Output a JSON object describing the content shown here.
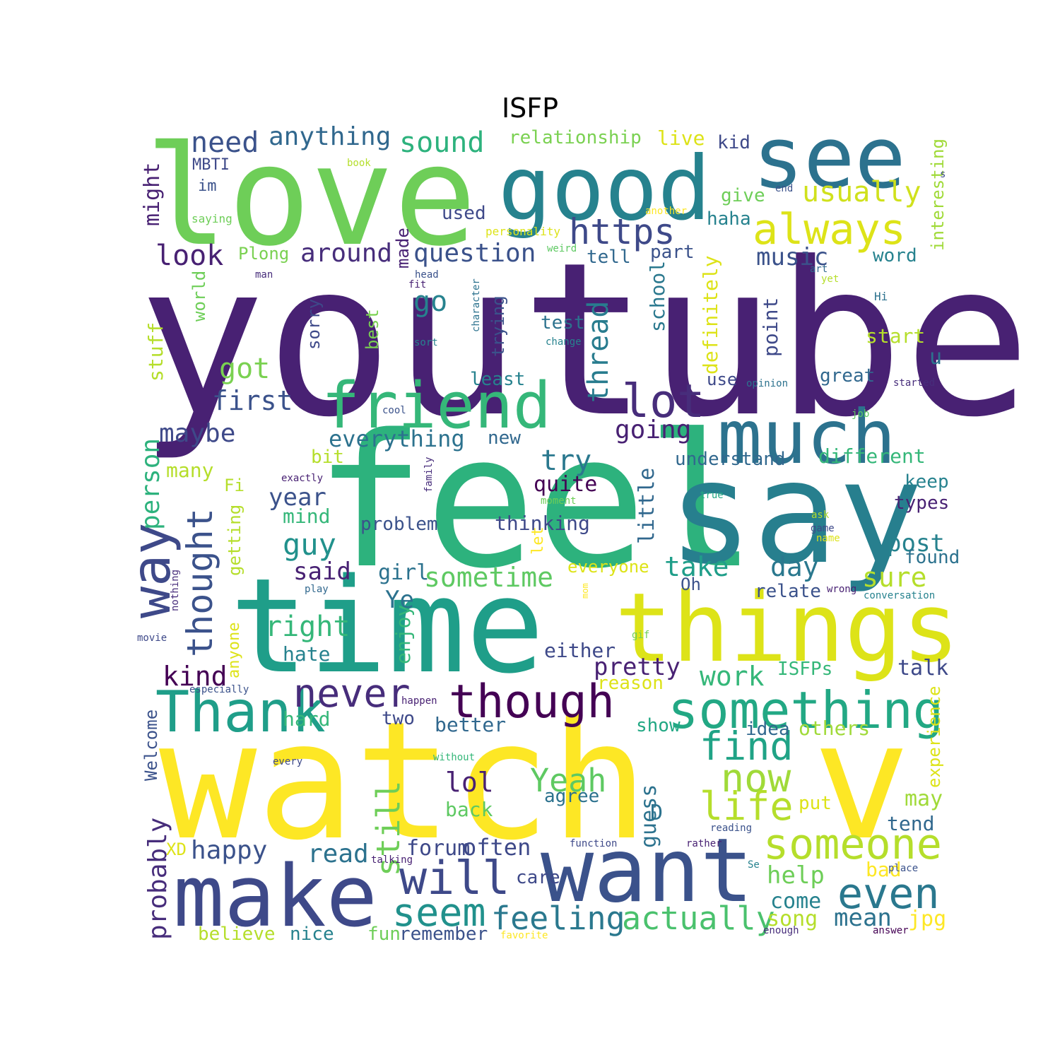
{
  "title": "ISFP",
  "palette": {
    "purple_dark": "#482173",
    "indigo": "#3e4989",
    "blue": "#31688e",
    "teal": "#26828e",
    "green_teal": "#1f9e89",
    "green": "#35b779",
    "light_green": "#6ece58",
    "yellow_green": "#b5de2b",
    "yellow": "#fde725",
    "deep_purple": "#440154"
  },
  "words": [
    {
      "text": "youtube",
      "color": "#482173"
    },
    {
      "text": "feel",
      "color": "#2db27d"
    },
    {
      "text": "watch",
      "color": "#fde725"
    },
    {
      "text": "v",
      "color": "#fde725"
    },
    {
      "text": "love",
      "color": "#6ece58"
    },
    {
      "text": "time",
      "color": "#1f9e89"
    },
    {
      "text": "say",
      "color": "#277f8e"
    },
    {
      "text": "good",
      "color": "#26828e"
    },
    {
      "text": "see",
      "color": "#2c728e"
    },
    {
      "text": "things",
      "color": "#dde318"
    },
    {
      "text": "make",
      "color": "#3e4989"
    },
    {
      "text": "want",
      "color": "#3b528b"
    },
    {
      "text": "much",
      "color": "#2c728e"
    },
    {
      "text": "friend",
      "color": "#35b779"
    },
    {
      "text": "something",
      "color": "#22a884"
    },
    {
      "text": "Thank",
      "color": "#1f9e89"
    },
    {
      "text": "though",
      "color": "#440154"
    },
    {
      "text": "never",
      "color": "#472d7b"
    },
    {
      "text": "someone",
      "color": "#b5de2b"
    },
    {
      "text": "will",
      "color": "#3e4989"
    },
    {
      "text": "even",
      "color": "#2a788e"
    },
    {
      "text": "find",
      "color": "#20a386"
    },
    {
      "text": "now",
      "color": "#a0da39"
    },
    {
      "text": "life",
      "color": "#b5de2b"
    },
    {
      "text": "seem",
      "color": "#21918c"
    },
    {
      "text": "feeling",
      "color": "#2a788e"
    },
    {
      "text": "actually",
      "color": "#4ac16d"
    },
    {
      "text": "always",
      "color": "#dde318"
    },
    {
      "text": "https",
      "color": "#3e4989"
    },
    {
      "text": "lot",
      "color": "#472d7b"
    },
    {
      "text": "way",
      "color": "#3e4989"
    },
    {
      "text": "thought",
      "color": "#3b528b"
    },
    {
      "text": "usually",
      "color": "#d0e11c"
    },
    {
      "text": "Yeah",
      "color": "#5ec962"
    },
    {
      "text": "still",
      "color": "#6ece58"
    },
    {
      "text": "need",
      "color": "#3b528b"
    },
    {
      "text": "anything",
      "color": "#31688e"
    },
    {
      "text": "sound",
      "color": "#2db27d"
    },
    {
      "text": "look",
      "color": "#482173"
    },
    {
      "text": "around",
      "color": "#472d7b"
    },
    {
      "text": "question",
      "color": "#3b528b"
    },
    {
      "text": "go",
      "color": "#26828e"
    },
    {
      "text": "got",
      "color": "#7ad151"
    },
    {
      "text": "first",
      "color": "#3b528b"
    },
    {
      "text": "thread",
      "color": "#287c8e"
    },
    {
      "text": "going",
      "color": "#482173"
    },
    {
      "text": "maybe",
      "color": "#3e4989"
    },
    {
      "text": "everything",
      "color": "#2c728e"
    },
    {
      "text": "try",
      "color": "#2a788e"
    },
    {
      "text": "person",
      "color": "#2db27d"
    },
    {
      "text": "sometime",
      "color": "#5ec962"
    },
    {
      "text": "take",
      "color": "#1f9e89"
    },
    {
      "text": "day",
      "color": "#2a788e"
    },
    {
      "text": "sure",
      "color": "#b5de2b"
    },
    {
      "text": "post",
      "color": "#26828e"
    },
    {
      "text": "guy",
      "color": "#21918c"
    },
    {
      "text": "right",
      "color": "#35b779"
    },
    {
      "text": "kind",
      "color": "#440154"
    },
    {
      "text": "pretty",
      "color": "#482173"
    },
    {
      "text": "work",
      "color": "#35b779"
    },
    {
      "text": "lol",
      "color": "#482173"
    },
    {
      "text": "probably",
      "color": "#472d7b"
    },
    {
      "text": "happy",
      "color": "#3b528b"
    },
    {
      "text": "read",
      "color": "#2c728e"
    },
    {
      "text": "often",
      "color": "#3e4989"
    },
    {
      "text": "forum",
      "color": "#3e4989"
    },
    {
      "text": "help",
      "color": "#6ece58"
    },
    {
      "text": "come",
      "color": "#26828e"
    },
    {
      "text": "mean",
      "color": "#2c728e"
    },
    {
      "text": "song",
      "color": "#b5de2b"
    },
    {
      "text": "jpg",
      "color": "#fde725"
    },
    {
      "text": "music",
      "color": "#3b528b"
    },
    {
      "text": "definitely",
      "color": "#dde318"
    },
    {
      "text": "school",
      "color": "#2a788e"
    },
    {
      "text": "point",
      "color": "#3e4989"
    },
    {
      "text": "little",
      "color": "#31688e"
    },
    {
      "text": "guess",
      "color": "#2c728e"
    },
    {
      "text": "might",
      "color": "#482173"
    },
    {
      "text": "stuff",
      "color": "#b5de2b"
    },
    {
      "text": "many",
      "color": "#b5de2b"
    },
    {
      "text": "year",
      "color": "#3b528b"
    },
    {
      "text": "mind",
      "color": "#35b779"
    },
    {
      "text": "quite",
      "color": "#440154"
    },
    {
      "text": "thinking",
      "color": "#3e4989"
    },
    {
      "text": "problem",
      "color": "#3b528b"
    },
    {
      "text": "said",
      "color": "#482173"
    },
    {
      "text": "girl",
      "color": "#2c728e"
    },
    {
      "text": "Ye",
      "color": "#2c728e"
    },
    {
      "text": "enjoy",
      "color": "#35b779"
    },
    {
      "text": "hate",
      "color": "#26828e"
    },
    {
      "text": "hard",
      "color": "#35b779"
    },
    {
      "text": "two",
      "color": "#3e4989"
    },
    {
      "text": "better",
      "color": "#31688e"
    },
    {
      "text": "either",
      "color": "#3e4989"
    },
    {
      "text": "reason",
      "color": "#dde318"
    },
    {
      "text": "talk",
      "color": "#3e4989"
    },
    {
      "text": "ISFPs",
      "color": "#35b779"
    },
    {
      "text": "experience",
      "color": "#dde318"
    },
    {
      "text": "others",
      "color": "#a0da39"
    },
    {
      "text": "idea",
      "color": "#31688e"
    },
    {
      "text": "show",
      "color": "#22a884"
    },
    {
      "text": "may",
      "color": "#a0da39"
    },
    {
      "text": "tend",
      "color": "#31688e"
    },
    {
      "text": "put",
      "color": "#dde318"
    },
    {
      "text": "D",
      "color": "#2c728e"
    },
    {
      "text": "bad",
      "color": "#fde725"
    },
    {
      "text": "back",
      "color": "#5ec962"
    },
    {
      "text": "agree",
      "color": "#2c728e"
    },
    {
      "text": "care",
      "color": "#3e4989"
    },
    {
      "text": "fun",
      "color": "#6ece58"
    },
    {
      "text": "remember",
      "color": "#3b528b"
    },
    {
      "text": "nice",
      "color": "#26828e"
    },
    {
      "text": "believe",
      "color": "#b5de2b"
    },
    {
      "text": "XD",
      "color": "#dde318"
    },
    {
      "text": "Welcome",
      "color": "#3b528b"
    },
    {
      "text": "anyone",
      "color": "#dde318"
    },
    {
      "text": "getting",
      "color": "#b5de2b"
    },
    {
      "text": "world",
      "color": "#6ece58"
    },
    {
      "text": "Fi",
      "color": "#b5de2b"
    },
    {
      "text": "sorry",
      "color": "#3e4989"
    },
    {
      "text": "best",
      "color": "#7ad151"
    },
    {
      "text": "trying",
      "color": "#3b528b"
    },
    {
      "text": "test",
      "color": "#2c728e"
    },
    {
      "text": "least",
      "color": "#26828e"
    },
    {
      "text": "new",
      "color": "#31688e"
    },
    {
      "text": "bit",
      "color": "#b5de2b"
    },
    {
      "text": "made",
      "color": "#482173"
    },
    {
      "text": "used",
      "color": "#3e4989"
    },
    {
      "text": "part",
      "color": "#3b528b"
    },
    {
      "text": "tell",
      "color": "#31688e"
    },
    {
      "text": "haha",
      "color": "#26828e"
    },
    {
      "text": "give",
      "color": "#6ece58"
    },
    {
      "text": "kid",
      "color": "#3e4989"
    },
    {
      "text": "live",
      "color": "#dde318"
    },
    {
      "text": "relationship",
      "color": "#7ad151"
    },
    {
      "text": "interesting",
      "color": "#a0da39"
    },
    {
      "text": "word",
      "color": "#26828e"
    },
    {
      "text": "start",
      "color": "#b5de2b"
    },
    {
      "text": "u",
      "color": "#2c728e"
    },
    {
      "text": "great",
      "color": "#31688e"
    },
    {
      "text": "use",
      "color": "#3e4989"
    },
    {
      "text": "different",
      "color": "#35b779"
    },
    {
      "text": "understand",
      "color": "#31688e"
    },
    {
      "text": "keep",
      "color": "#26828e"
    },
    {
      "text": "types",
      "color": "#482173"
    },
    {
      "text": "found",
      "color": "#2c728e"
    },
    {
      "text": "relate",
      "color": "#3b528b"
    },
    {
      "text": "everyone",
      "color": "#dde318"
    },
    {
      "text": "Oh",
      "color": "#3b528b"
    },
    {
      "text": "let",
      "color": "#fde725"
    },
    {
      "text": "MBTI",
      "color": "#3e4989"
    },
    {
      "text": "im",
      "color": "#3b528b"
    },
    {
      "text": "Plong",
      "color": "#7ad151"
    },
    {
      "text": "book",
      "color": "#b5de2b"
    },
    {
      "text": "saying",
      "color": "#6ece58"
    },
    {
      "text": "personality",
      "color": "#dde318"
    },
    {
      "text": "another",
      "color": "#fde725"
    },
    {
      "text": "weird",
      "color": "#5ec962"
    },
    {
      "text": "man",
      "color": "#472d7b"
    },
    {
      "text": "head",
      "color": "#3b528b"
    },
    {
      "text": "fit",
      "color": "#482173"
    },
    {
      "text": "character",
      "color": "#2c728e"
    },
    {
      "text": "change",
      "color": "#26828e"
    },
    {
      "text": "sort",
      "color": "#26828e"
    },
    {
      "text": "art",
      "color": "#31688e"
    },
    {
      "text": "yet",
      "color": "#b5de2b"
    },
    {
      "text": "Hi",
      "color": "#2c728e"
    },
    {
      "text": "end",
      "color": "#3b528b"
    },
    {
      "text": "s",
      "color": "#3e4989"
    },
    {
      "text": "opinion",
      "color": "#2c728e"
    },
    {
      "text": "started",
      "color": "#472d7b"
    },
    {
      "text": "cool",
      "color": "#3b528b"
    },
    {
      "text": "job",
      "color": "#5ec962"
    },
    {
      "text": "exactly",
      "color": "#482173"
    },
    {
      "text": "family",
      "color": "#472d7b"
    },
    {
      "text": "true",
      "color": "#22a884"
    },
    {
      "text": "moment",
      "color": "#6ece58"
    },
    {
      "text": "ask",
      "color": "#b5de2b"
    },
    {
      "text": "game",
      "color": "#3e4989"
    },
    {
      "text": "name",
      "color": "#dde318"
    },
    {
      "text": "wrong",
      "color": "#482173"
    },
    {
      "text": "conversation",
      "color": "#26828e"
    },
    {
      "text": "play",
      "color": "#31688e"
    },
    {
      "text": "nothing",
      "color": "#472d7b"
    },
    {
      "text": "mom",
      "color": "#fde725"
    },
    {
      "text": "movie",
      "color": "#3e4989"
    },
    {
      "text": "gif",
      "color": "#6ece58"
    },
    {
      "text": "especially",
      "color": "#3b528b"
    },
    {
      "text": "happen",
      "color": "#482173"
    },
    {
      "text": "every",
      "color": "#3e4989"
    },
    {
      "text": "without",
      "color": "#35b779"
    },
    {
      "text": "reading",
      "color": "#3b528b"
    },
    {
      "text": "function",
      "color": "#3e4989"
    },
    {
      "text": "rather",
      "color": "#482173"
    },
    {
      "text": "talking",
      "color": "#482173"
    },
    {
      "text": "place",
      "color": "#3b528b"
    },
    {
      "text": "Se",
      "color": "#26828e"
    },
    {
      "text": "favorite",
      "color": "#fde725"
    },
    {
      "text": "enough",
      "color": "#472d7b"
    },
    {
      "text": "answer",
      "color": "#440154"
    }
  ]
}
